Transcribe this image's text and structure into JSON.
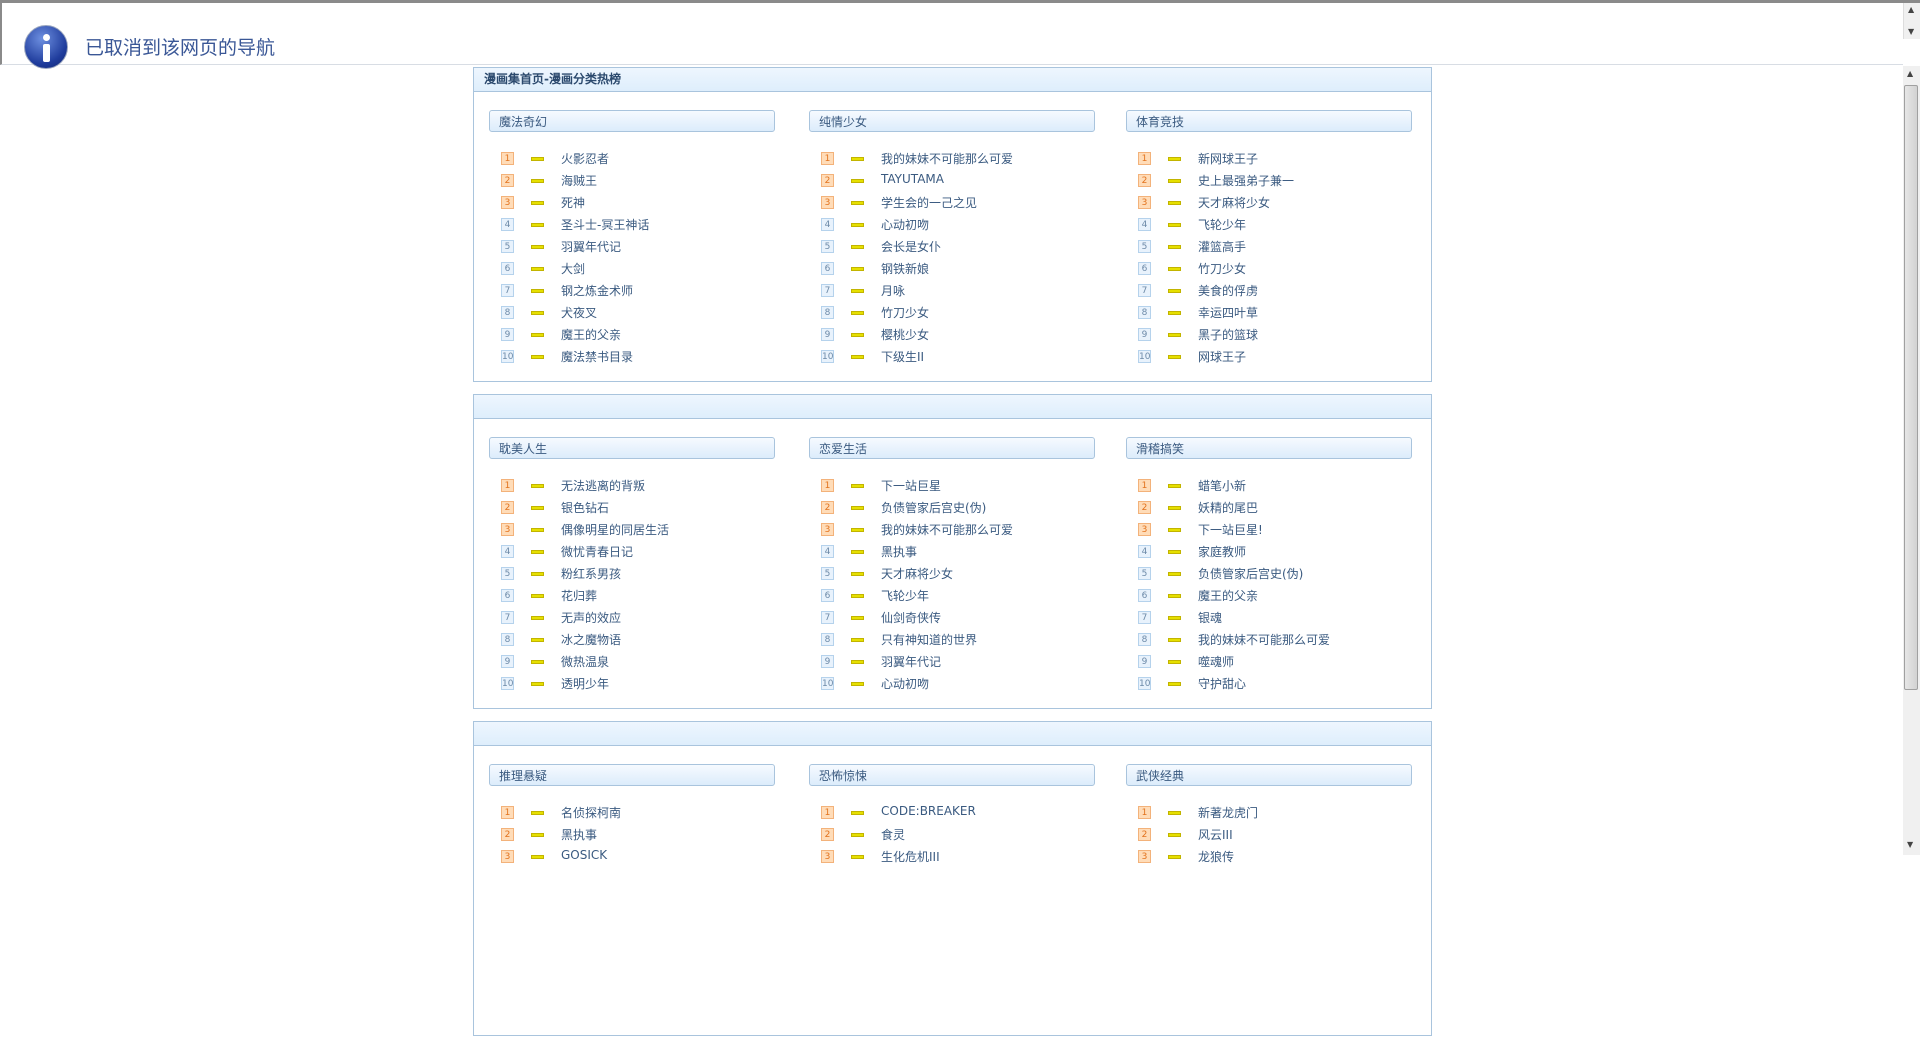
{
  "infobar": {
    "icon": "info-icon",
    "message": "已取消到该网页的导航"
  },
  "colors": {
    "accent": "#3a5796",
    "border": "#a9c4dd",
    "rank_top": "#ffdcb8",
    "rank_other": "#e8f2fc",
    "dash": "#e6e000"
  },
  "sections": [
    {
      "title": "漫画集首页-漫画分类热榜",
      "columns": [
        {
          "category": "魔法奇幻",
          "items": [
            "火影忍者",
            "海贼王",
            "死神",
            "圣斗士-冥王神话",
            "羽翼年代记",
            "大剑",
            "钢之炼金术师",
            "犬夜叉",
            "魔王的父亲",
            "魔法禁书目录"
          ]
        },
        {
          "category": "纯情少女",
          "items": [
            "我的妹妹不可能那么可爱",
            "TAYUTAMA",
            "学生会的一己之见",
            "心动初吻",
            "会长是女仆",
            "钢铁新娘",
            "月咏",
            "竹刀少女",
            "樱桃少女",
            "下级生II"
          ]
        },
        {
          "category": "体育竞技",
          "items": [
            "新网球王子",
            "史上最强弟子兼一",
            "天才麻将少女",
            "飞轮少年",
            "灌篮高手",
            "竹刀少女",
            "美食的俘虏",
            "幸运四叶草",
            "黑子的篮球",
            "网球王子"
          ]
        }
      ]
    },
    {
      "title": "",
      "columns": [
        {
          "category": "耽美人生",
          "items": [
            "无法逃离的背叛",
            "银色钻石",
            "偶像明星的同居生活",
            "微忧青春日记",
            "粉红系男孩",
            "花归葬",
            "无声的效应",
            "冰之魔物语",
            "微热温泉",
            "透明少年"
          ]
        },
        {
          "category": "恋爱生活",
          "items": [
            "下一站巨星",
            "负债管家后宫史(伪)",
            "我的妹妹不可能那么可爱",
            "黑执事",
            "天才麻将少女",
            "飞轮少年",
            "仙剑奇侠传",
            "只有神知道的世界",
            "羽翼年代记",
            "心动初吻"
          ]
        },
        {
          "category": "滑稽搞笑",
          "items": [
            "蜡笔小新",
            "妖精的尾巴",
            "下一站巨星!",
            "家庭教师",
            "负债管家后宫史(伪)",
            "魔王的父亲",
            "银魂",
            "我的妹妹不可能那么可爱",
            "噬魂师",
            "守护甜心"
          ]
        }
      ]
    },
    {
      "title": "",
      "columns": [
        {
          "category": "推理悬疑",
          "items": [
            "名侦探柯南",
            "黑执事",
            "GOSICK"
          ]
        },
        {
          "category": "恐怖惊悚",
          "items": [
            "CODE:BREAKER",
            "食灵",
            "生化危机III"
          ]
        },
        {
          "category": "武侠经典",
          "items": [
            "新著龙虎门",
            "风云III",
            "龙狼传"
          ]
        }
      ]
    }
  ]
}
